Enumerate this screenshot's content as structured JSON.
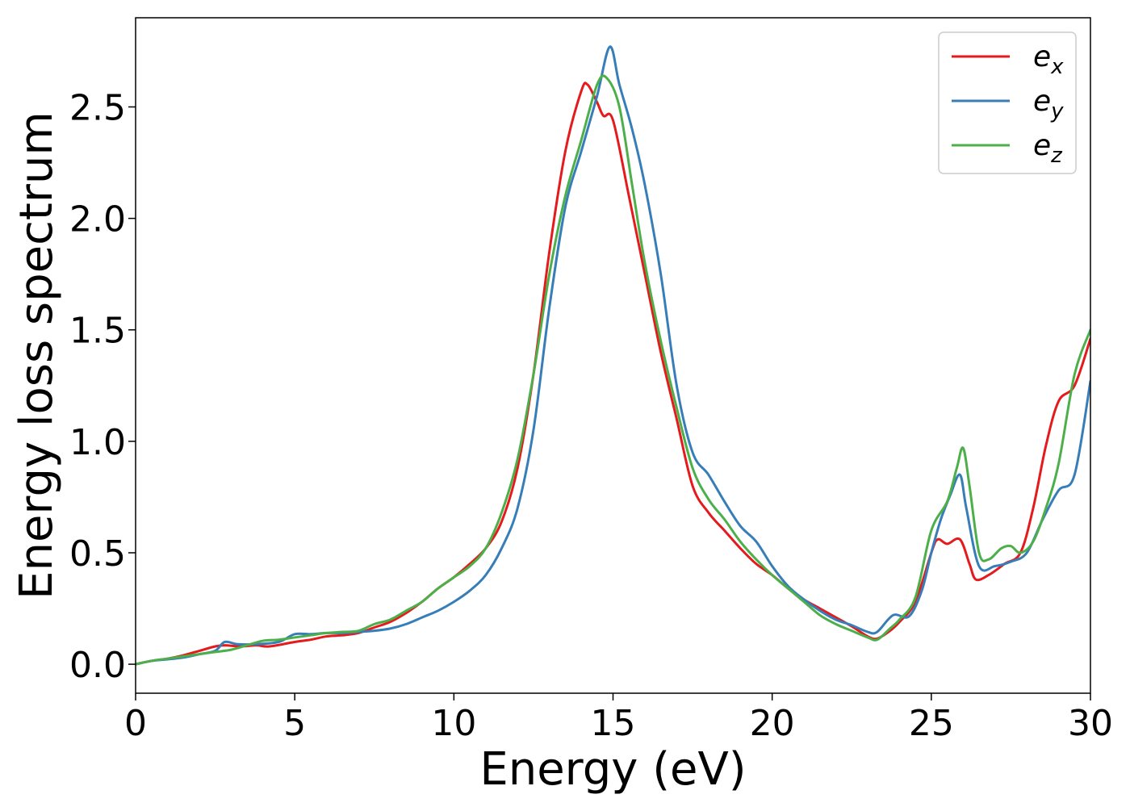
{
  "chart_data": {
    "type": "line",
    "title": "",
    "xlabel": "Energy (eV)",
    "ylabel": "Energy loss spectrum",
    "xlim": [
      0,
      30
    ],
    "ylim": [
      -0.13,
      2.9
    ],
    "xticks": [
      0,
      5,
      10,
      15,
      20,
      25,
      30
    ],
    "xtick_labels": [
      "0",
      "5",
      "10",
      "15",
      "20",
      "25",
      "30"
    ],
    "yticks": [
      0.0,
      0.5,
      1.0,
      1.5,
      2.0,
      2.5
    ],
    "ytick_labels": [
      "0.0",
      "0.5",
      "1.0",
      "1.5",
      "2.0",
      "2.5"
    ],
    "grid": false,
    "legend_position": "top-right",
    "series": [
      {
        "name": "e_x",
        "legend_base": "e",
        "legend_sub": "x",
        "color": "#e41a1c",
        "points": [
          [
            0,
            0
          ],
          [
            0.5,
            0.015
          ],
          [
            1.0,
            0.025
          ],
          [
            1.5,
            0.04
          ],
          [
            2.0,
            0.06
          ],
          [
            2.5,
            0.08
          ],
          [
            2.8,
            0.085
          ],
          [
            3.3,
            0.08
          ],
          [
            3.8,
            0.085
          ],
          [
            4.2,
            0.08
          ],
          [
            5.0,
            0.1
          ],
          [
            5.5,
            0.11
          ],
          [
            6.0,
            0.125
          ],
          [
            6.5,
            0.13
          ],
          [
            7.0,
            0.14
          ],
          [
            7.5,
            0.165
          ],
          [
            8.0,
            0.19
          ],
          [
            8.5,
            0.23
          ],
          [
            9.0,
            0.28
          ],
          [
            9.5,
            0.34
          ],
          [
            10.0,
            0.39
          ],
          [
            10.5,
            0.45
          ],
          [
            11.0,
            0.52
          ],
          [
            11.5,
            0.64
          ],
          [
            12.0,
            0.88
          ],
          [
            12.5,
            1.3
          ],
          [
            13.0,
            1.85
          ],
          [
            13.5,
            2.3
          ],
          [
            14.0,
            2.57
          ],
          [
            14.2,
            2.6
          ],
          [
            14.5,
            2.52
          ],
          [
            14.7,
            2.46
          ],
          [
            15.0,
            2.44
          ],
          [
            15.5,
            2.1
          ],
          [
            16.0,
            1.75
          ],
          [
            16.5,
            1.4
          ],
          [
            17.0,
            1.1
          ],
          [
            17.5,
            0.8
          ],
          [
            18.0,
            0.68
          ],
          [
            18.5,
            0.6
          ],
          [
            19.0,
            0.52
          ],
          [
            19.5,
            0.45
          ],
          [
            20.0,
            0.4
          ],
          [
            20.5,
            0.34
          ],
          [
            21.0,
            0.29
          ],
          [
            21.5,
            0.25
          ],
          [
            22.0,
            0.21
          ],
          [
            22.5,
            0.17
          ],
          [
            23.0,
            0.125
          ],
          [
            23.3,
            0.115
          ],
          [
            23.7,
            0.15
          ],
          [
            24.0,
            0.19
          ],
          [
            24.5,
            0.28
          ],
          [
            25.0,
            0.5
          ],
          [
            25.2,
            0.56
          ],
          [
            25.5,
            0.54
          ],
          [
            25.9,
            0.56
          ],
          [
            26.2,
            0.45
          ],
          [
            26.4,
            0.38
          ],
          [
            26.8,
            0.4
          ],
          [
            27.3,
            0.45
          ],
          [
            27.8,
            0.5
          ],
          [
            28.2,
            0.7
          ],
          [
            28.6,
            0.98
          ],
          [
            29.0,
            1.18
          ],
          [
            29.5,
            1.25
          ],
          [
            30.0,
            1.46
          ]
        ]
      },
      {
        "name": "e_y",
        "legend_base": "e",
        "legend_sub": "y",
        "color": "#377eb8",
        "points": [
          [
            0,
            0
          ],
          [
            0.5,
            0.015
          ],
          [
            1.0,
            0.022
          ],
          [
            1.5,
            0.03
          ],
          [
            2.0,
            0.045
          ],
          [
            2.5,
            0.06
          ],
          [
            2.8,
            0.1
          ],
          [
            3.2,
            0.09
          ],
          [
            3.8,
            0.09
          ],
          [
            4.5,
            0.1
          ],
          [
            5.0,
            0.135
          ],
          [
            5.5,
            0.135
          ],
          [
            6.0,
            0.14
          ],
          [
            6.5,
            0.14
          ],
          [
            7.0,
            0.145
          ],
          [
            7.5,
            0.15
          ],
          [
            8.0,
            0.16
          ],
          [
            8.5,
            0.18
          ],
          [
            9.0,
            0.21
          ],
          [
            9.5,
            0.24
          ],
          [
            10.0,
            0.28
          ],
          [
            10.5,
            0.33
          ],
          [
            11.0,
            0.4
          ],
          [
            11.5,
            0.52
          ],
          [
            12.0,
            0.7
          ],
          [
            12.5,
            1.05
          ],
          [
            13.0,
            1.6
          ],
          [
            13.5,
            2.05
          ],
          [
            14.0,
            2.3
          ],
          [
            14.5,
            2.55
          ],
          [
            14.9,
            2.77
          ],
          [
            15.2,
            2.6
          ],
          [
            15.6,
            2.4
          ],
          [
            16.0,
            2.15
          ],
          [
            16.5,
            1.75
          ],
          [
            17.0,
            1.25
          ],
          [
            17.5,
            0.95
          ],
          [
            18.0,
            0.85
          ],
          [
            18.5,
            0.73
          ],
          [
            19.0,
            0.62
          ],
          [
            19.5,
            0.55
          ],
          [
            20.0,
            0.44
          ],
          [
            20.5,
            0.35
          ],
          [
            21.0,
            0.29
          ],
          [
            21.5,
            0.24
          ],
          [
            22.0,
            0.2
          ],
          [
            22.5,
            0.175
          ],
          [
            23.0,
            0.145
          ],
          [
            23.3,
            0.145
          ],
          [
            23.8,
            0.22
          ],
          [
            24.3,
            0.215
          ],
          [
            24.7,
            0.33
          ],
          [
            25.0,
            0.5
          ],
          [
            25.3,
            0.65
          ],
          [
            25.6,
            0.76
          ],
          [
            25.9,
            0.85
          ],
          [
            26.1,
            0.7
          ],
          [
            26.5,
            0.44
          ],
          [
            27.0,
            0.44
          ],
          [
            27.5,
            0.46
          ],
          [
            28.0,
            0.5
          ],
          [
            28.5,
            0.65
          ],
          [
            29.0,
            0.78
          ],
          [
            29.5,
            0.85
          ],
          [
            30.0,
            1.27
          ]
        ]
      },
      {
        "name": "e_z",
        "legend_base": "e",
        "legend_sub": "z",
        "color": "#4daf4a",
        "points": [
          [
            0,
            0
          ],
          [
            0.5,
            0.015
          ],
          [
            1.0,
            0.025
          ],
          [
            1.5,
            0.035
          ],
          [
            2.0,
            0.045
          ],
          [
            2.5,
            0.055
          ],
          [
            3.0,
            0.065
          ],
          [
            3.5,
            0.085
          ],
          [
            4.0,
            0.105
          ],
          [
            4.5,
            0.11
          ],
          [
            5.0,
            0.12
          ],
          [
            5.5,
            0.13
          ],
          [
            6.0,
            0.14
          ],
          [
            6.5,
            0.145
          ],
          [
            7.0,
            0.15
          ],
          [
            7.5,
            0.18
          ],
          [
            8.0,
            0.2
          ],
          [
            8.5,
            0.24
          ],
          [
            9.0,
            0.28
          ],
          [
            9.5,
            0.34
          ],
          [
            10.0,
            0.39
          ],
          [
            10.5,
            0.44
          ],
          [
            11.0,
            0.52
          ],
          [
            11.5,
            0.68
          ],
          [
            12.0,
            0.92
          ],
          [
            12.5,
            1.3
          ],
          [
            13.0,
            1.75
          ],
          [
            13.5,
            2.1
          ],
          [
            14.0,
            2.35
          ],
          [
            14.5,
            2.6
          ],
          [
            14.8,
            2.63
          ],
          [
            15.2,
            2.5
          ],
          [
            15.6,
            2.15
          ],
          [
            16.0,
            1.8
          ],
          [
            16.5,
            1.45
          ],
          [
            17.0,
            1.15
          ],
          [
            17.5,
            0.88
          ],
          [
            18.0,
            0.74
          ],
          [
            18.5,
            0.65
          ],
          [
            19.0,
            0.55
          ],
          [
            19.5,
            0.47
          ],
          [
            20.0,
            0.4
          ],
          [
            20.5,
            0.34
          ],
          [
            21.0,
            0.28
          ],
          [
            21.5,
            0.22
          ],
          [
            22.0,
            0.18
          ],
          [
            22.5,
            0.15
          ],
          [
            23.0,
            0.12
          ],
          [
            23.3,
            0.11
          ],
          [
            23.7,
            0.16
          ],
          [
            24.0,
            0.2
          ],
          [
            24.5,
            0.3
          ],
          [
            25.0,
            0.6
          ],
          [
            25.5,
            0.73
          ],
          [
            25.8,
            0.88
          ],
          [
            26.0,
            0.97
          ],
          [
            26.2,
            0.8
          ],
          [
            26.5,
            0.5
          ],
          [
            26.8,
            0.47
          ],
          [
            27.2,
            0.52
          ],
          [
            27.5,
            0.53
          ],
          [
            27.8,
            0.5
          ],
          [
            28.2,
            0.55
          ],
          [
            28.6,
            0.7
          ],
          [
            29.0,
            0.9
          ],
          [
            29.5,
            1.3
          ],
          [
            30.0,
            1.5
          ]
        ]
      }
    ]
  }
}
